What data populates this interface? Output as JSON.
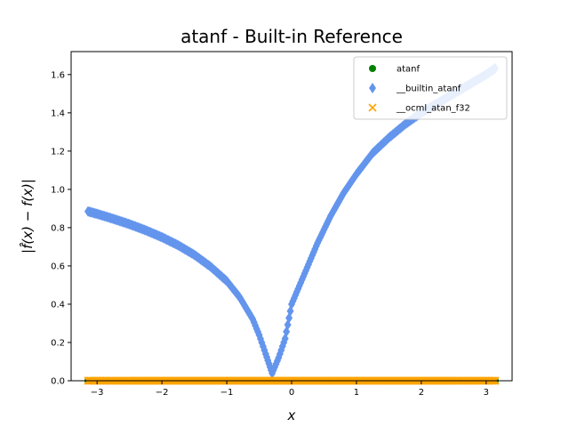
{
  "chart_data": {
    "type": "scatter",
    "title": "atanf - Built-in Reference",
    "xlabel": "x",
    "ylabel": "|f̂(x) − f(x)|",
    "xlim": [
      -3.4,
      3.4
    ],
    "ylim": [
      0.0,
      1.72
    ],
    "xticks": [
      -3,
      -2,
      -1,
      0,
      1,
      2,
      3
    ],
    "xtick_labels": [
      "−3",
      "−2",
      "−1",
      "0",
      "1",
      "2",
      "3"
    ],
    "yticks": [
      0.0,
      0.2,
      0.4,
      0.6,
      0.8,
      1.0,
      1.2,
      1.4,
      1.6
    ],
    "ytick_labels": [
      "0.0",
      "0.2",
      "0.4",
      "0.6",
      "0.8",
      "1.0",
      "1.2",
      "1.4",
      "1.6"
    ],
    "grid": false,
    "legend_position": "top-right",
    "series": [
      {
        "name": "atanf",
        "marker": "circle",
        "color": "#008000",
        "x": [
          -3.14,
          -2.5,
          -2.0,
          -1.5,
          -1.0,
          -0.5,
          0.0,
          0.5,
          1.0,
          1.5,
          2.0,
          2.5,
          3.14
        ],
        "y": [
          0,
          0,
          0,
          0,
          0,
          0,
          0,
          0,
          0,
          0,
          0,
          0,
          0
        ]
      },
      {
        "name": "__builtin_atanf",
        "marker": "thin_diamond",
        "color": "#6495ED",
        "x": [
          -3.14,
          -3.0,
          -2.75,
          -2.5,
          -2.25,
          -2.0,
          -1.75,
          -1.5,
          -1.25,
          -1.0,
          -0.8,
          -0.6,
          -0.5,
          -0.4,
          -0.3,
          -0.2,
          -0.1,
          0.0,
          0.2,
          0.4,
          0.6,
          0.8,
          1.0,
          1.25,
          1.5,
          1.75,
          2.0,
          2.25,
          2.5,
          2.75,
          3.0,
          3.14
        ],
        "y": [
          0.885,
          0.872,
          0.846,
          0.818,
          0.786,
          0.75,
          0.708,
          0.658,
          0.596,
          0.521,
          0.436,
          0.322,
          0.239,
          0.14,
          0.039,
          0.12,
          0.22,
          0.4,
          0.56,
          0.72,
          0.86,
          0.98,
          1.08,
          1.19,
          1.27,
          1.34,
          1.4,
          1.45,
          1.5,
          1.55,
          1.6,
          1.633
        ]
      },
      {
        "name": "__ocml_atan_f32",
        "marker": "x",
        "color": "#FFA500",
        "x": [
          -3.14,
          -2.5,
          -2.0,
          -1.5,
          -1.0,
          -0.5,
          0.0,
          0.5,
          1.0,
          1.5,
          2.0,
          2.5,
          3.14
        ],
        "y": [
          0,
          0,
          0,
          0,
          0,
          0,
          0,
          0,
          0,
          0,
          0,
          0,
          0
        ]
      }
    ]
  }
}
